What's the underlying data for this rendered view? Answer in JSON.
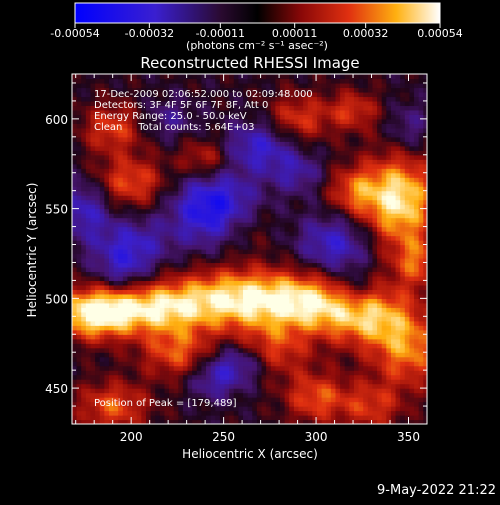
{
  "chart_data": {
    "type": "heatmap",
    "title": "Reconstructed RHESSI Image",
    "xlabel": "Heliocentric X (arcsec)",
    "ylabel": "Heliocentric Y (arcsec)",
    "xlim": [
      168,
      360
    ],
    "ylim": [
      430,
      625
    ],
    "xticks": [
      200,
      250,
      300,
      350
    ],
    "yticks": [
      450,
      500,
      550,
      600
    ],
    "colorbar": {
      "min": -0.00054,
      "max": 0.00054,
      "ticks": [
        "-0.00054",
        "-0.00032",
        "-0.00011",
        "0.00011",
        "0.00032",
        "0.00054"
      ],
      "units": "(photons cm⁻² s⁻¹ asec⁻²)"
    },
    "annotations": [
      "17-Dec-2009 02:06:52.000 to 02:09:48.000",
      "Detectors: 3F 4F 5F 6F 7F 8F, Att 0",
      "Energy Range: 25.0 - 50.0 keV",
      "Clean     Total counts: 5.64E+03"
    ],
    "peak_label": "Position of Peak = [179,489]",
    "peak": [
      179,
      489
    ],
    "colors": {
      "low": "#0a14e6",
      "mid_low": "#5a2ab0",
      "zero": "#000000",
      "mid_high": "#d42020",
      "high": "#ffd020",
      "max": "#ffffe0"
    }
  },
  "footer": {
    "date": "9-May-2022 21:22"
  }
}
